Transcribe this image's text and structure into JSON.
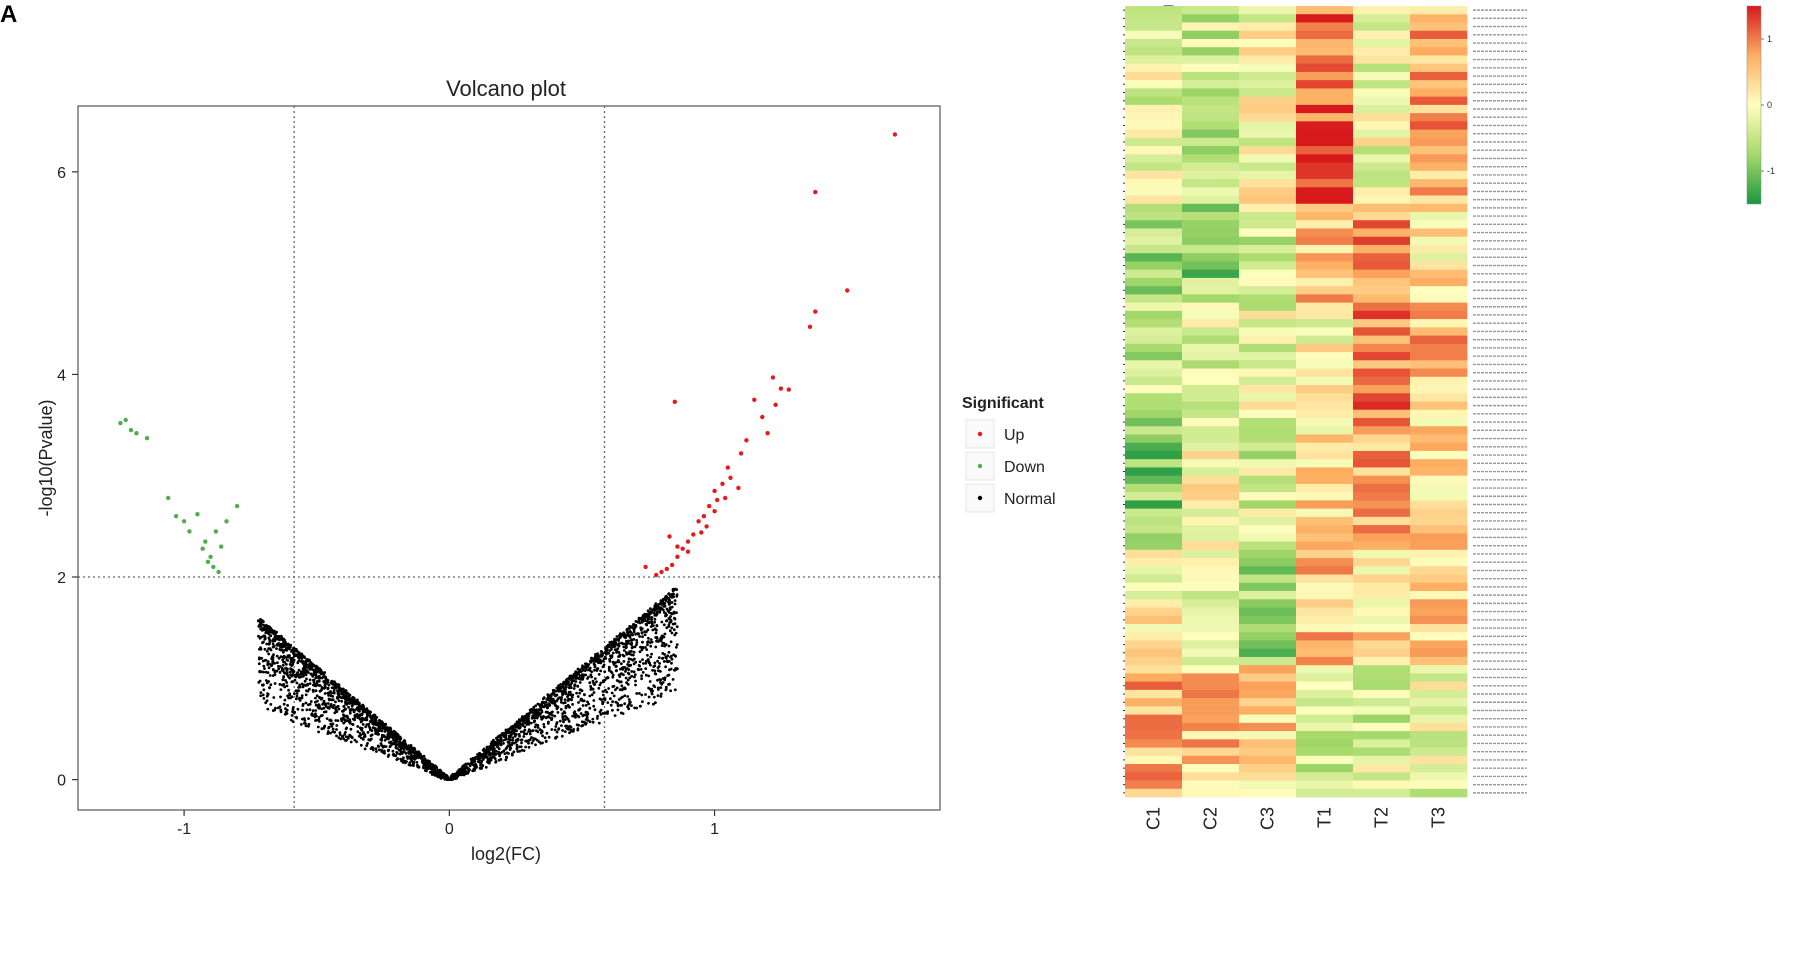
{
  "panels": {
    "a_letter": "A",
    "b_letter": "B"
  },
  "chart_data": [
    {
      "type": "scatter",
      "title": "Volcano plot",
      "xlabel": "log2(FC)",
      "ylabel": "-log10(Pvalue)",
      "xlim": [
        -1.4,
        1.85
      ],
      "ylim": [
        -0.3,
        6.65
      ],
      "xticks": [
        -1,
        0,
        1
      ],
      "xtick_labels": [
        "-1",
        "0",
        "1"
      ],
      "yticks": [
        0,
        2,
        4,
        6
      ],
      "ytick_labels": [
        "0",
        "2",
        "4",
        "6"
      ],
      "thresholds": {
        "x": [
          -0.585,
          0.585
        ],
        "y": [
          2
        ]
      },
      "legend": {
        "title": "Significant",
        "position": "right",
        "entries": [
          {
            "label": "Up",
            "color": "#e41a1c"
          },
          {
            "label": "Down",
            "color": "#4daf4a"
          },
          {
            "label": "Normal",
            "color": "#000000"
          }
        ]
      },
      "series": [
        {
          "name": "Up",
          "color": "#e41a1c",
          "points": [
            [
              1.68,
              6.37
            ],
            [
              1.38,
              5.8
            ],
            [
              1.5,
              4.83
            ],
            [
              1.38,
              4.62
            ],
            [
              1.36,
              4.47
            ],
            [
              1.22,
              3.97
            ],
            [
              1.25,
              3.86
            ],
            [
              1.28,
              3.85
            ],
            [
              1.15,
              3.75
            ],
            [
              1.23,
              3.7
            ],
            [
              0.85,
              3.73
            ],
            [
              1.18,
              3.58
            ],
            [
              1.2,
              3.42
            ],
            [
              1.12,
              3.35
            ],
            [
              1.1,
              3.22
            ],
            [
              1.05,
              3.08
            ],
            [
              1.06,
              2.98
            ],
            [
              1.03,
              2.92
            ],
            [
              1.09,
              2.88
            ],
            [
              1.0,
              2.85
            ],
            [
              1.01,
              2.76
            ],
            [
              0.98,
              2.7
            ],
            [
              1.0,
              2.65
            ],
            [
              0.96,
              2.6
            ],
            [
              0.94,
              2.55
            ],
            [
              0.97,
              2.5
            ],
            [
              0.92,
              2.42
            ],
            [
              0.9,
              2.35
            ],
            [
              0.88,
              2.28
            ],
            [
              0.86,
              2.2
            ],
            [
              0.84,
              2.12
            ],
            [
              0.82,
              2.08
            ],
            [
              0.8,
              2.05
            ],
            [
              0.78,
              2.02
            ],
            [
              0.74,
              2.1
            ],
            [
              0.86,
              2.3
            ],
            [
              0.9,
              2.25
            ],
            [
              0.83,
              2.4
            ],
            [
              0.95,
              2.44
            ],
            [
              1.04,
              2.78
            ]
          ]
        },
        {
          "name": "Down",
          "color": "#4daf4a",
          "points": [
            [
              -1.22,
              3.55
            ],
            [
              -1.24,
              3.52
            ],
            [
              -1.18,
              3.42
            ],
            [
              -1.14,
              3.37
            ],
            [
              -1.2,
              3.45
            ],
            [
              -1.06,
              2.78
            ],
            [
              -1.03,
              2.6
            ],
            [
              -1.0,
              2.55
            ],
            [
              -0.98,
              2.45
            ],
            [
              -0.92,
              2.35
            ],
            [
              -0.88,
              2.45
            ],
            [
              -0.8,
              2.7
            ],
            [
              -0.9,
              2.2
            ],
            [
              -0.91,
              2.15
            ],
            [
              -0.89,
              2.1
            ],
            [
              -0.86,
              2.3
            ],
            [
              -0.95,
              2.62
            ],
            [
              -0.84,
              2.55
            ],
            [
              -0.93,
              2.28
            ],
            [
              -0.87,
              2.05
            ]
          ]
        },
        {
          "name": "Normal",
          "color": "#000000",
          "distribution": "dense V-shaped band, -log10(P) ≈ 2.2·|log2FC| (up to ~1.6 at x≈-0.7 and ~1.9 at x≈0.85)"
        }
      ]
    },
    {
      "type": "heatmap",
      "columns": [
        "C1",
        "C2",
        "C3",
        "T1",
        "T2",
        "T3"
      ],
      "row_count": 96,
      "color_scale": {
        "min": -1.5,
        "max": 1.5,
        "colors": [
          "#1a9641",
          "#a6d96a",
          "#ffffbf",
          "#fdae61",
          "#d7191c"
        ],
        "ticks": [
          "1",
          "0",
          "-1"
        ]
      },
      "row_groups": [
        {
          "rows": 24,
          "values": [
            -0.2,
            -0.4,
            0.0,
            1.1,
            -0.1,
            0.7
          ]
        },
        {
          "rows": 12,
          "values": [
            -0.7,
            -0.8,
            -0.4,
            0.5,
            0.8,
            0.2
          ]
        },
        {
          "rows": 14,
          "values": [
            -0.5,
            -0.3,
            -0.2,
            0.1,
            0.9,
            0.6
          ]
        },
        {
          "rows": 16,
          "values": [
            -0.9,
            0.0,
            -0.3,
            0.3,
            0.7,
            0.3
          ]
        },
        {
          "rows": 14,
          "values": [
            0.1,
            -0.4,
            -0.8,
            0.5,
            0.3,
            0.4
          ]
        },
        {
          "rows": 16,
          "values": [
            0.6,
            0.5,
            0.4,
            -0.4,
            -0.3,
            -0.2
          ]
        }
      ]
    }
  ]
}
